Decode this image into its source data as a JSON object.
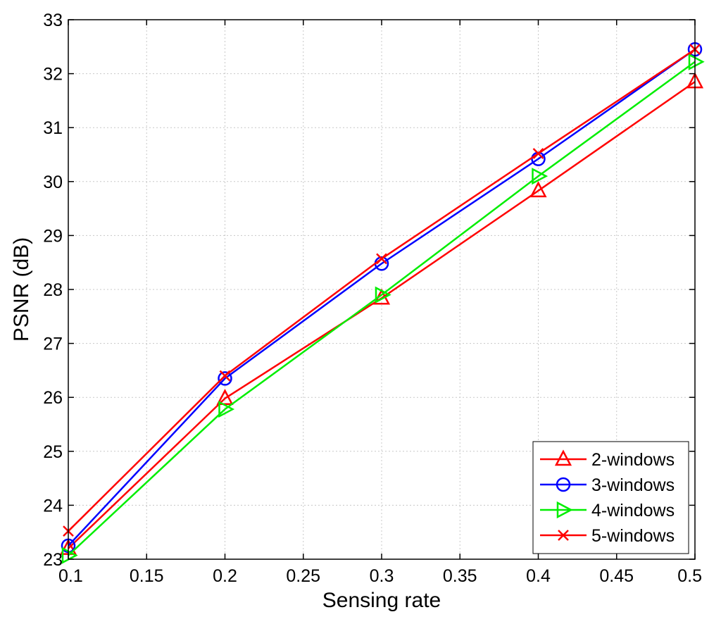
{
  "chart_data": {
    "type": "line",
    "xlabel": "Sensing rate",
    "ylabel": "PSNR (dB)",
    "xlim": [
      0.1,
      0.5
    ],
    "ylim": [
      23,
      33
    ],
    "xticks": [
      "0.1",
      "0.15",
      "0.2",
      "0.25",
      "0.3",
      "0.35",
      "0.4",
      "0.45",
      "0.5"
    ],
    "yticks": [
      "23",
      "24",
      "25",
      "26",
      "27",
      "28",
      "29",
      "30",
      "31",
      "32",
      "33"
    ],
    "grid": true,
    "legend_position": "bottom-right",
    "x": [
      0.1,
      0.2,
      0.3,
      0.4,
      0.5
    ],
    "series": [
      {
        "name": "2-windows",
        "color": "#ff0000",
        "marker": "triangle-up",
        "values": [
          23.2,
          25.98,
          27.84,
          29.83,
          31.85
        ]
      },
      {
        "name": "3-windows",
        "color": "#0000ff",
        "marker": "circle",
        "values": [
          23.25,
          26.35,
          28.48,
          30.42,
          32.45
        ]
      },
      {
        "name": "4-windows",
        "color": "#00ee00",
        "marker": "triangle-right",
        "values": [
          23.07,
          25.78,
          27.9,
          30.1,
          32.22
        ]
      },
      {
        "name": "5-windows",
        "color": "#ff0000",
        "marker": "x",
        "values": [
          23.52,
          26.4,
          28.57,
          30.52,
          32.45
        ]
      }
    ]
  }
}
